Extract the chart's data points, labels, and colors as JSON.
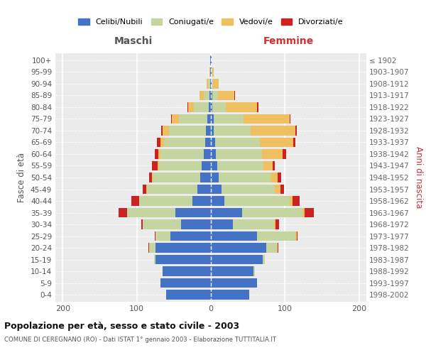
{
  "age_groups": [
    "0-4",
    "5-9",
    "10-14",
    "15-19",
    "20-24",
    "25-29",
    "30-34",
    "35-39",
    "40-44",
    "45-49",
    "50-54",
    "55-59",
    "60-64",
    "65-69",
    "70-74",
    "75-79",
    "80-84",
    "85-89",
    "90-94",
    "95-99",
    "100+"
  ],
  "birth_years": [
    "1998-2002",
    "1993-1997",
    "1988-1992",
    "1983-1987",
    "1978-1982",
    "1973-1977",
    "1968-1972",
    "1963-1967",
    "1958-1962",
    "1953-1957",
    "1948-1952",
    "1943-1947",
    "1938-1942",
    "1933-1937",
    "1928-1932",
    "1923-1927",
    "1918-1922",
    "1913-1917",
    "1908-1912",
    "1903-1907",
    "≤ 1902"
  ],
  "colors": {
    "celibi": "#4472c4",
    "coniugati": "#c5d5a0",
    "vedovi": "#f0c060",
    "divorziati": "#cc2222"
  },
  "legend_labels": [
    "Celibi/Nubili",
    "Coniugati/e",
    "Vedovi/e",
    "Divorziati/e"
  ],
  "maschi": {
    "celibi": [
      60,
      68,
      65,
      75,
      75,
      55,
      40,
      48,
      25,
      18,
      14,
      12,
      10,
      8,
      7,
      5,
      3,
      2,
      1,
      1,
      1
    ],
    "coniugati": [
      0,
      0,
      0,
      2,
      8,
      20,
      52,
      65,
      72,
      68,
      65,
      58,
      58,
      55,
      50,
      38,
      20,
      8,
      3,
      0,
      0
    ],
    "vedovi": [
      0,
      0,
      0,
      0,
      0,
      0,
      0,
      0,
      0,
      1,
      1,
      2,
      3,
      5,
      8,
      10,
      8,
      5,
      2,
      1,
      0
    ],
    "divorziati": [
      0,
      0,
      0,
      0,
      1,
      1,
      2,
      12,
      10,
      5,
      3,
      8,
      5,
      5,
      2,
      1,
      1,
      0,
      0,
      0,
      0
    ]
  },
  "femmine": {
    "nubili": [
      52,
      62,
      58,
      70,
      75,
      62,
      30,
      42,
      18,
      14,
      11,
      9,
      7,
      6,
      4,
      4,
      2,
      2,
      1,
      1,
      1
    ],
    "coniugate": [
      0,
      0,
      1,
      3,
      14,
      52,
      55,
      82,
      88,
      72,
      70,
      62,
      62,
      60,
      50,
      40,
      18,
      8,
      2,
      1,
      0
    ],
    "vedove": [
      0,
      0,
      0,
      0,
      1,
      2,
      2,
      3,
      4,
      8,
      9,
      12,
      28,
      45,
      60,
      62,
      42,
      22,
      8,
      2,
      0
    ],
    "divorziate": [
      0,
      0,
      0,
      0,
      1,
      1,
      5,
      12,
      10,
      5,
      5,
      3,
      5,
      3,
      2,
      1,
      2,
      1,
      0,
      0,
      0
    ]
  },
  "xlim": 210,
  "xlabel_left": "Maschi",
  "xlabel_right": "Femmine",
  "ylabel_left": "Fasce di età",
  "ylabel_right": "Anni di nascita",
  "title": "Popolazione per età, sesso e stato civile - 2003",
  "subtitle": "COMUNE DI CEREGNANO (RO) - Dati ISTAT 1° gennaio 2003 - Elaborazione TUTTITALIA.IT",
  "background_color": "#ebebeb",
  "bar_height": 0.82
}
